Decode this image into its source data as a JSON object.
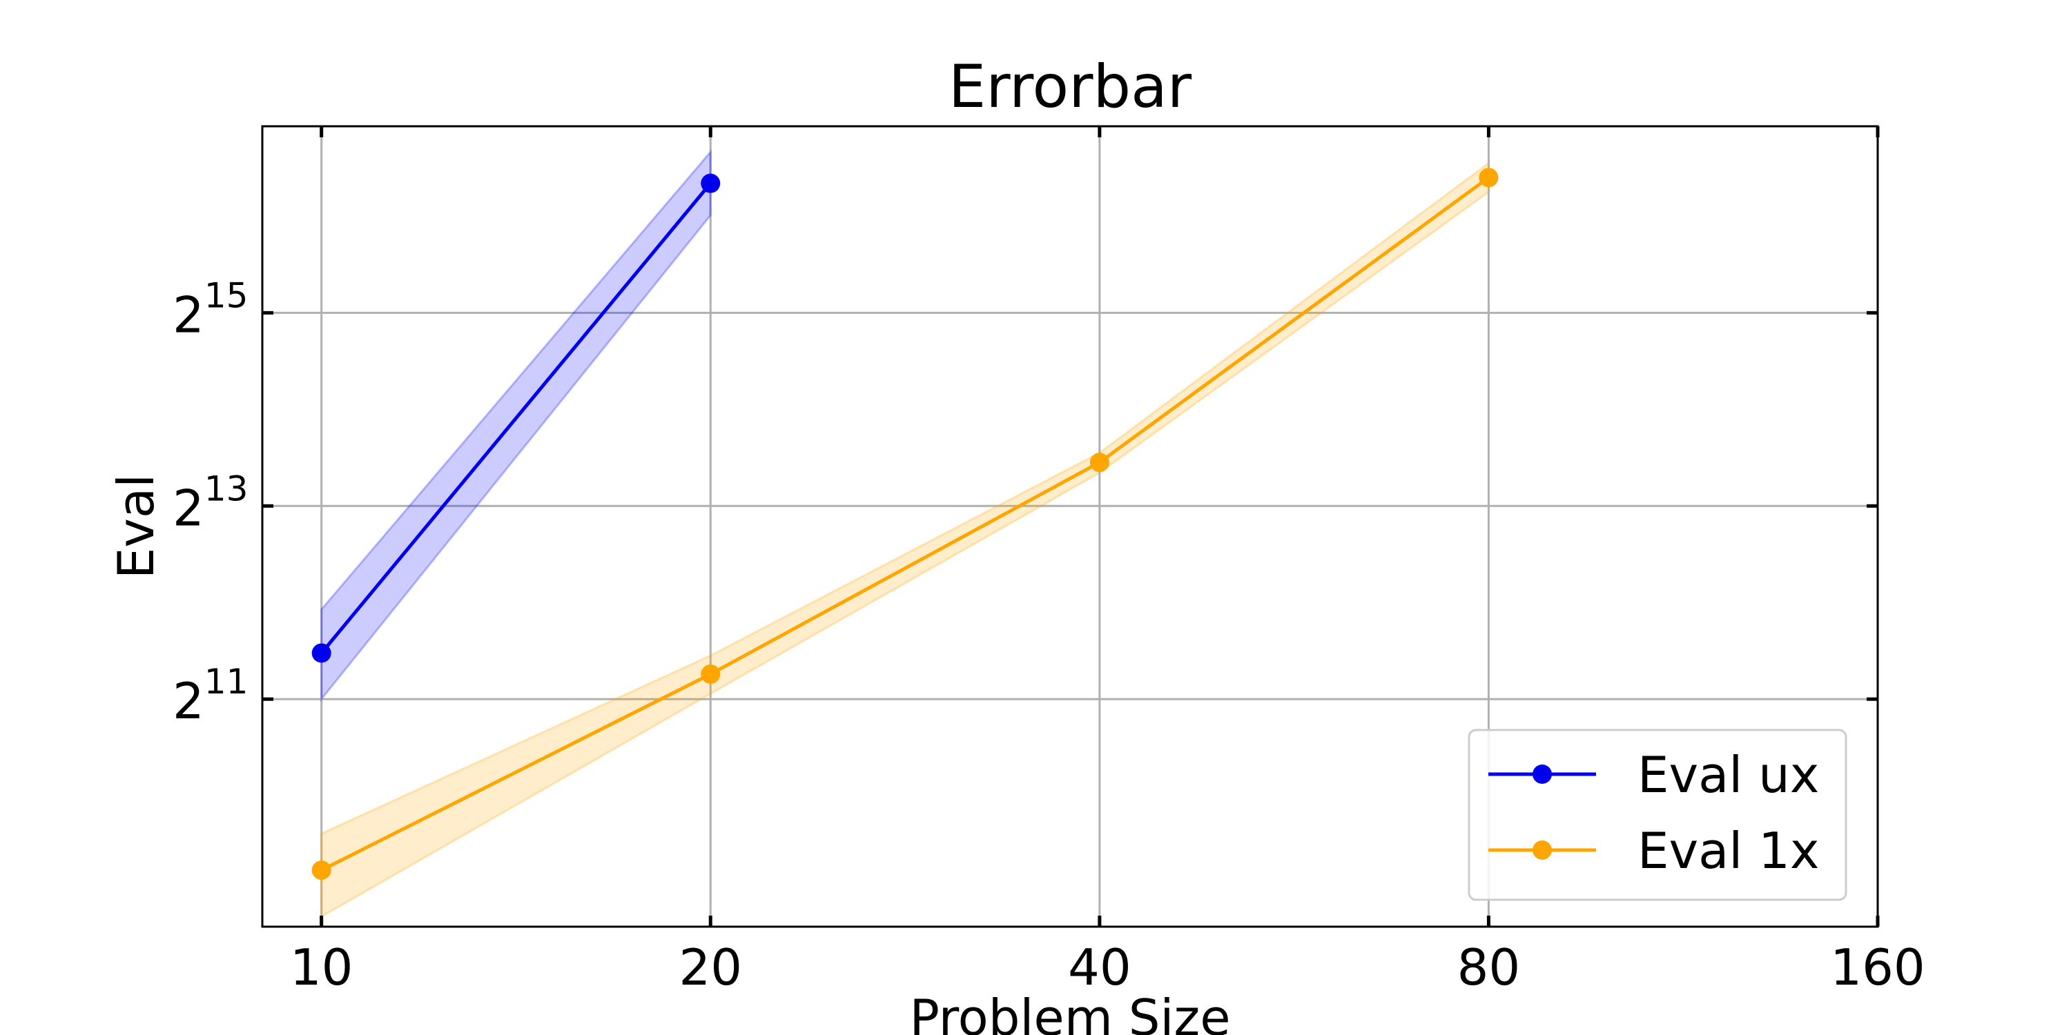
{
  "chart_data": {
    "type": "line",
    "title": "Errorbar",
    "xlabel": "Problem Size",
    "ylabel": "Eval",
    "x_scale": "log2",
    "y_scale": "log2",
    "xlim": [
      9,
      160
    ],
    "ylim": [
      400,
      125000
    ],
    "x_ticks": [
      10,
      20,
      40,
      80,
      160
    ],
    "x_tick_labels": [
      "10",
      "20",
      "40",
      "80",
      "160"
    ],
    "y_ticks": [
      {
        "value": 2048,
        "base": "2",
        "exp": "11"
      },
      {
        "value": 8192,
        "base": "2",
        "exp": "13"
      },
      {
        "value": 32768,
        "base": "2",
        "exp": "15"
      }
    ],
    "grid": true,
    "legend_position": "bottom-right",
    "series": [
      {
        "name": "Eval ux",
        "color": "#0000ee",
        "band_color": "#0000ff",
        "x": [
          10,
          20
        ],
        "y": [
          2850,
          83000
        ],
        "y_lower": [
          2050,
          66000
        ],
        "y_upper": [
          3900,
          104000
        ]
      },
      {
        "name": "Eval 1x",
        "color": "#ffa500",
        "band_color": "#ffa500",
        "x": [
          10,
          20,
          40,
          80
        ],
        "y": [
          600,
          2450,
          11200,
          86500
        ],
        "y_lower": [
          430,
          2130,
          10400,
          78000
        ],
        "y_upper": [
          780,
          2800,
          12000,
          96000
        ]
      }
    ]
  }
}
